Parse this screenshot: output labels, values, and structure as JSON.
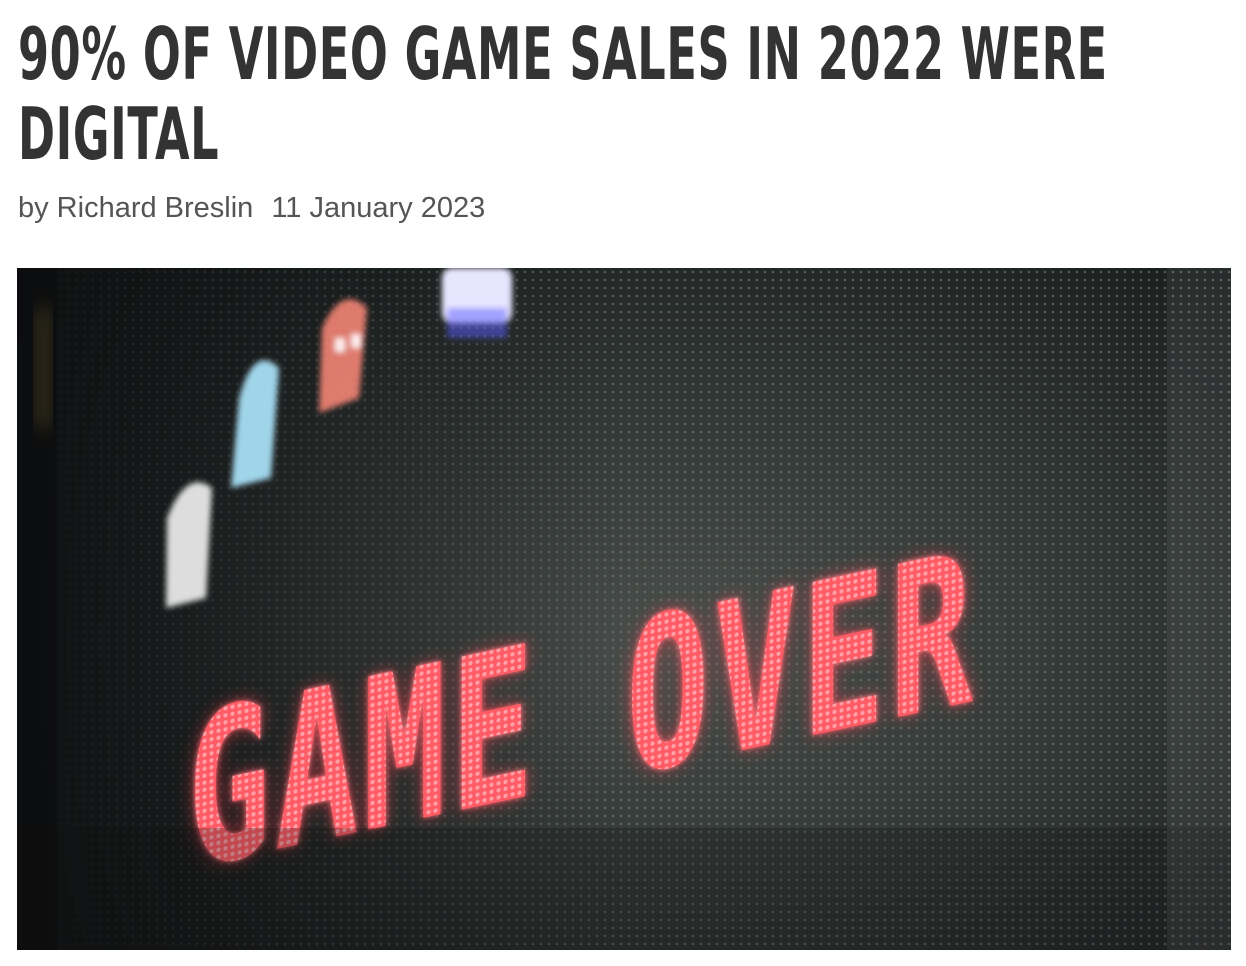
{
  "article": {
    "headline": "90% OF VIDEO GAME SALES IN 2022 WERE DIGITAL",
    "byline_prefix": "by Richard Breslin",
    "date": "11 January 2023"
  },
  "hero_image": {
    "screen_text": "GAME OVER",
    "colors": {
      "background": "#202424",
      "led_red": "#ff5c66",
      "ghost_white": "#f2f2f2",
      "ghost_blue": "#aee8ff",
      "ghost_pink": "#ff8a7a",
      "ghost_lavender": "#e8e6ff"
    }
  }
}
